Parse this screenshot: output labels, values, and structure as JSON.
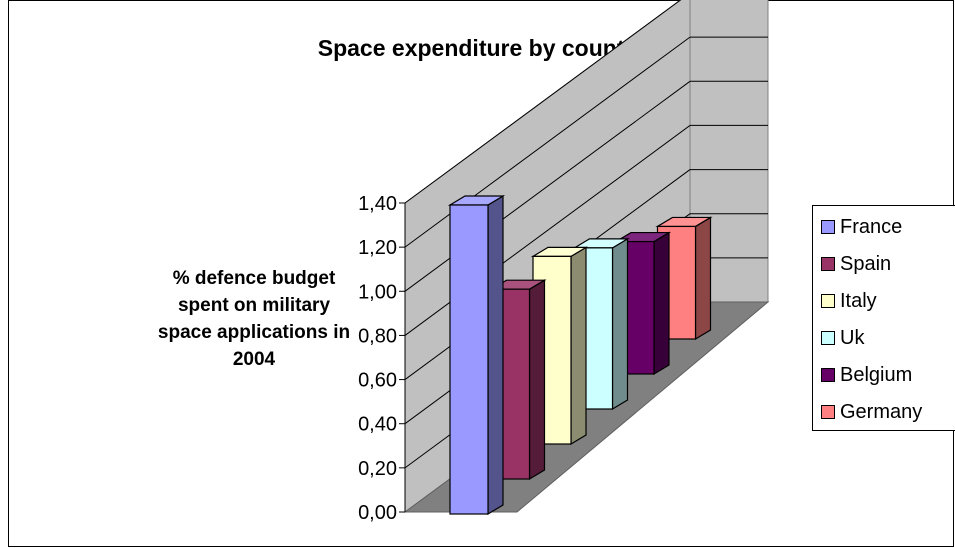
{
  "chart_data": {
    "type": "bar",
    "title": "Space expenditure by country",
    "ylabel": "% defence budget spent on military space applications in 2004",
    "xlabel": "",
    "ylim": [
      0,
      1.4
    ],
    "yticks": [
      "0,00",
      "0,20",
      "0,40",
      "0,60",
      "0,80",
      "1,00",
      "1,20",
      "1,40"
    ],
    "series": [
      {
        "name": "France",
        "value": 1.4,
        "color": "#9999ff"
      },
      {
        "name": "Spain",
        "value": 0.86,
        "color": "#993366"
      },
      {
        "name": "Italy",
        "value": 0.85,
        "color": "#ffffcc"
      },
      {
        "name": "Uk",
        "value": 0.73,
        "color": "#ccffff"
      },
      {
        "name": "Belgium",
        "value": 0.6,
        "color": "#660066"
      },
      {
        "name": "Germany",
        "value": 0.51,
        "color": "#ff8080"
      }
    ],
    "walls_color": "#c0c0c0",
    "floor_color": "#808080",
    "gridlines": true,
    "legend_position": "right"
  }
}
